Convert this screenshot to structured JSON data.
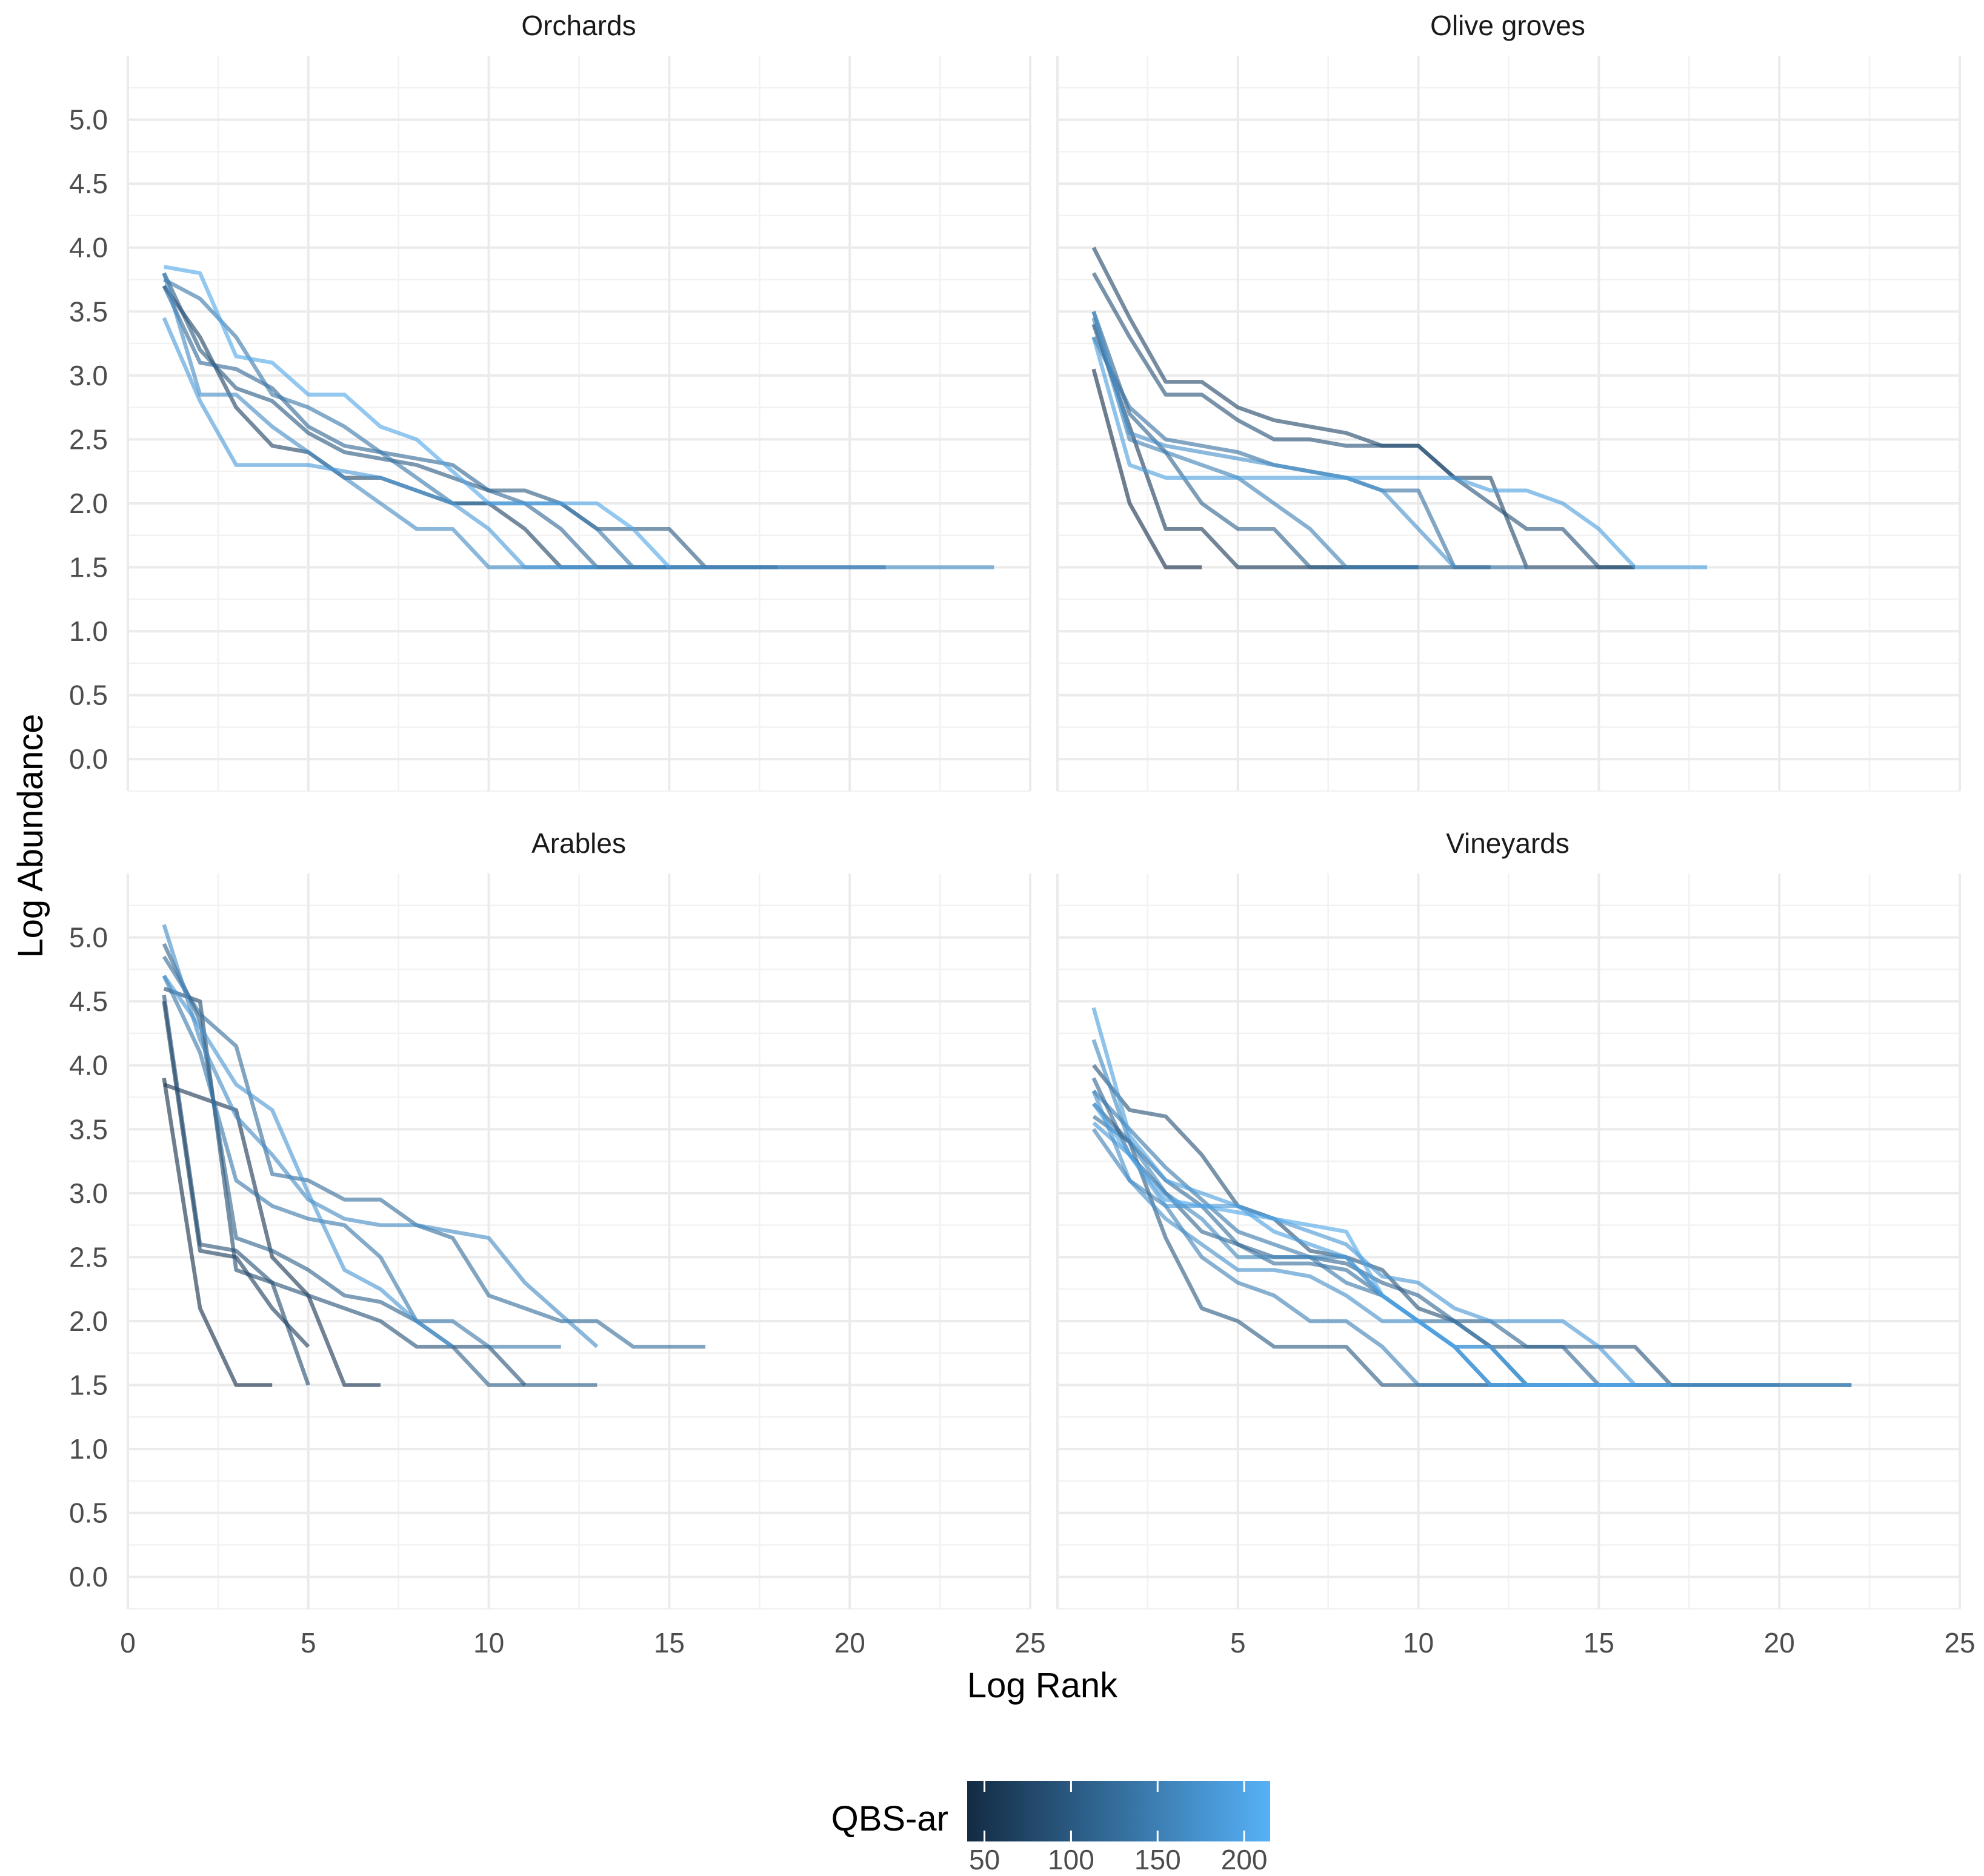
{
  "chart_data": {
    "type": "line",
    "xlabel": "Log Rank",
    "ylabel": "Log Abundance",
    "xlim": [
      0,
      25
    ],
    "ylim": [
      -0.25,
      5.5
    ],
    "x_ticks": [
      "0",
      "5",
      "10",
      "15",
      "20",
      "25"
    ],
    "y_ticks": [
      "0.0",
      "0.5",
      "1.0",
      "1.5",
      "2.0",
      "2.5",
      "3.0",
      "3.5",
      "4.0",
      "4.5",
      "5.0"
    ],
    "legend": {
      "title": "QBS-ar",
      "min": 40,
      "max": 215,
      "low_color": "#132b43",
      "high_color": "#56b1f7",
      "ticks": [
        "50",
        "100",
        "150",
        "200"
      ]
    },
    "panels": [
      {
        "title": "Orchards",
        "series": [
          {
            "qbs": 70,
            "y": [
              3.7,
              3.3,
              2.75,
              2.45,
              2.4,
              2.2,
              2.2,
              2.1,
              2.0,
              2.0,
              1.8,
              1.5,
              1.5,
              1.5,
              1.5
            ]
          },
          {
            "qbs": 100,
            "y": [
              3.8,
              3.2,
              2.9,
              2.8,
              2.55,
              2.4,
              2.35,
              2.3,
              2.2,
              2.1,
              2.1,
              2.0,
              1.8,
              1.8,
              1.8,
              1.5,
              1.5,
              1.5
            ]
          },
          {
            "qbs": 120,
            "y": [
              3.7,
              3.1,
              3.05,
              2.9,
              2.6,
              2.45,
              2.4,
              2.35,
              2.3,
              2.1,
              2.0,
              1.8,
              1.5,
              1.5,
              1.5,
              1.5,
              1.5,
              1.5,
              1.5,
              1.5,
              1.5
            ]
          },
          {
            "qbs": 140,
            "y": [
              3.75,
              3.6,
              3.3,
              2.85,
              2.75,
              2.6,
              2.4,
              2.2,
              2.0,
              2.0,
              2.0,
              2.0,
              1.8,
              1.5,
              1.5,
              1.5
            ]
          },
          {
            "qbs": 165,
            "y": [
              3.8,
              2.85,
              2.85,
              2.6,
              2.4,
              2.2,
              2.0,
              1.8,
              1.8,
              1.5,
              1.5,
              1.5,
              1.5,
              1.5,
              1.5,
              1.5,
              1.5,
              1.5,
              1.5,
              1.5,
              1.5,
              1.5,
              1.5,
              1.5
            ]
          },
          {
            "qbs": 185,
            "y": [
              3.45,
              2.8,
              2.3,
              2.3,
              2.3,
              2.25,
              2.2,
              2.1,
              2.0,
              1.8,
              1.5,
              1.5,
              1.5
            ]
          },
          {
            "qbs": 200,
            "y": [
              3.85,
              3.8,
              3.15,
              3.1,
              2.85,
              2.85,
              2.6,
              2.5,
              2.25,
              2.0,
              2.0,
              2.0,
              2.0,
              1.8,
              1.5
            ]
          }
        ]
      },
      {
        "title": "Olive groves",
        "series": [
          {
            "qbs": 45,
            "y": [
              3.05,
              2.0,
              1.5,
              1.5
            ]
          },
          {
            "qbs": 60,
            "y": [
              3.4,
              2.6,
              1.8,
              1.8,
              1.5,
              1.5,
              1.5,
              1.5,
              1.5,
              1.5
            ]
          },
          {
            "qbs": 75,
            "y": [
              4.0,
              3.45,
              2.95,
              2.95,
              2.75,
              2.65,
              2.6,
              2.55,
              2.45,
              2.45,
              2.2,
              2.2,
              1.5,
              1.5,
              1.5,
              1.5
            ]
          },
          {
            "qbs": 90,
            "y": [
              3.8,
              3.3,
              2.85,
              2.85,
              2.65,
              2.5,
              2.5,
              2.45,
              2.45,
              2.45,
              2.2,
              2.0,
              1.8,
              1.8,
              1.5,
              1.5
            ]
          },
          {
            "qbs": 110,
            "y": [
              3.5,
              2.7,
              2.4,
              2.0,
              1.8,
              1.8,
              1.5,
              1.5,
              1.5,
              1.5,
              1.5,
              1.5
            ]
          },
          {
            "qbs": 130,
            "y": [
              3.3,
              2.75,
              2.5,
              2.45,
              2.4,
              2.3,
              2.25,
              2.2,
              2.1,
              2.1,
              1.5,
              1.5,
              1.5
            ]
          },
          {
            "qbs": 150,
            "y": [
              3.45,
              2.5,
              2.4,
              2.3,
              2.2,
              2.0,
              1.8,
              1.5,
              1.5,
              1.5
            ]
          },
          {
            "qbs": 170,
            "y": [
              3.5,
              2.55,
              2.45,
              2.4,
              2.35,
              2.3,
              2.25,
              2.2,
              2.1,
              1.8,
              1.5
            ]
          },
          {
            "qbs": 190,
            "y": [
              3.3,
              2.3,
              2.2,
              2.2,
              2.2,
              2.2,
              2.2,
              2.2,
              2.2,
              2.2,
              2.2,
              2.1,
              2.1,
              2.0,
              1.8,
              1.5,
              1.5,
              1.5
            ]
          }
        ]
      },
      {
        "title": "Arables",
        "series": [
          {
            "qbs": 45,
            "y": [
              3.9,
              2.1,
              1.5,
              1.5
            ]
          },
          {
            "qbs": 55,
            "y": [
              3.85,
              3.75,
              3.65,
              2.5,
              2.2,
              1.5,
              1.5
            ]
          },
          {
            "qbs": 65,
            "y": [
              4.5,
              2.55,
              2.5,
              2.1,
              1.8
            ]
          },
          {
            "qbs": 80,
            "y": [
              4.6,
              4.5,
              2.4,
              2.3,
              1.5
            ]
          },
          {
            "qbs": 90,
            "y": [
              4.55,
              2.6,
              2.55,
              2.3,
              2.2,
              2.1,
              2.0,
              1.8,
              1.8,
              1.8,
              1.5
            ]
          },
          {
            "qbs": 110,
            "y": [
              4.95,
              4.35,
              2.65,
              2.55,
              2.4,
              2.2,
              2.15,
              2.0,
              1.8,
              1.5,
              1.5,
              1.5,
              1.5
            ]
          },
          {
            "qbs": 125,
            "y": [
              4.85,
              4.4,
              4.15,
              3.15,
              3.1,
              2.95,
              2.95,
              2.75,
              2.65,
              2.2,
              2.1,
              2.0,
              2.0,
              1.8,
              1.8,
              1.8
            ]
          },
          {
            "qbs": 140,
            "y": [
              4.7,
              4.1,
              3.1,
              2.9,
              2.8,
              2.75,
              2.5,
              2.0,
              2.0,
              1.8,
              1.8,
              1.8
            ]
          },
          {
            "qbs": 165,
            "y": [
              5.1,
              4.2,
              3.6,
              3.3,
              2.95,
              2.8,
              2.75,
              2.75,
              2.7,
              2.65,
              2.3,
              2.05,
              1.8
            ]
          },
          {
            "qbs": 180,
            "y": [
              4.7,
              4.3,
              3.85,
              3.65,
              3.0,
              2.4,
              2.25,
              2.0,
              1.8
            ]
          }
        ]
      },
      {
        "title": "Vineyards",
        "series": [
          {
            "qbs": 90,
            "y": [
              4.0,
              3.65,
              3.6,
              3.3,
              2.9,
              2.8,
              2.55,
              2.5,
              2.4,
              2.1,
              2.0,
              1.8,
              1.8,
              1.8,
              1.8,
              1.8,
              1.5,
              1.5,
              1.5,
              1.5,
              1.5,
              1.5
            ]
          },
          {
            "qbs": 100,
            "y": [
              3.7,
              3.4,
              2.65,
              2.1,
              2.0,
              1.8,
              1.8,
              1.8,
              1.5,
              1.5,
              1.5,
              1.5,
              1.5,
              1.5,
              1.5,
              1.5,
              1.5
            ]
          },
          {
            "qbs": 115,
            "y": [
              3.9,
              3.3,
              3.0,
              2.7,
              2.6,
              2.5,
              2.5,
              2.45,
              2.3,
              2.2,
              2.0,
              2.0,
              1.8,
              1.8,
              1.5
            ]
          },
          {
            "qbs": 125,
            "y": [
              3.6,
              3.4,
              3.1,
              2.9,
              2.6,
              2.45,
              2.45,
              2.4,
              2.2,
              2.0,
              1.8,
              1.5,
              1.5,
              1.5,
              1.5,
              1.5,
              1.5,
              1.5,
              1.5,
              1.5
            ]
          },
          {
            "qbs": 140,
            "y": [
              3.8,
              3.5,
              3.2,
              2.95,
              2.7,
              2.6,
              2.5,
              2.3,
              2.2,
              2.0,
              2.0,
              1.8,
              1.5,
              1.5
            ]
          },
          {
            "qbs": 150,
            "y": [
              3.5,
              3.1,
              2.9,
              2.5,
              2.3,
              2.2,
              2.0,
              2.0,
              1.8,
              1.5,
              1.5,
              1.5,
              1.5,
              1.5
            ]
          },
          {
            "qbs": 160,
            "y": [
              4.2,
              3.4,
              3.0,
              2.8,
              2.5,
              2.5,
              2.5,
              2.5,
              2.2,
              2.0,
              1.8,
              1.8,
              1.5
            ]
          },
          {
            "qbs": 170,
            "y": [
              3.8,
              3.1,
              2.8,
              2.6,
              2.4,
              2.4,
              2.35,
              2.2,
              2.0,
              2.0,
              1.8,
              1.5,
              1.5,
              1.5,
              1.5,
              1.5,
              1.5,
              1.5,
              1.5,
              1.5,
              1.5,
              1.5
            ]
          },
          {
            "qbs": 180,
            "y": [
              3.55,
              3.3,
              2.9,
              2.9,
              2.9,
              2.8,
              2.7,
              2.6,
              2.35,
              2.3,
              2.1,
              2.0,
              2.0,
              2.0,
              1.8,
              1.5
            ]
          },
          {
            "qbs": 190,
            "y": [
              4.45,
              3.45,
              3.1,
              3.0,
              2.9,
              2.7,
              2.6,
              2.5,
              2.2,
              2.0,
              1.8,
              1.8,
              1.5,
              1.5,
              1.5,
              1.5
            ]
          },
          {
            "qbs": 200,
            "y": [
              3.7,
              3.3,
              2.95,
              2.9,
              2.85,
              2.8,
              2.75,
              2.7,
              2.2,
              2.0,
              1.8,
              1.5,
              1.5,
              1.5,
              1.5,
              1.5,
              1.5
            ]
          }
        ]
      }
    ]
  }
}
